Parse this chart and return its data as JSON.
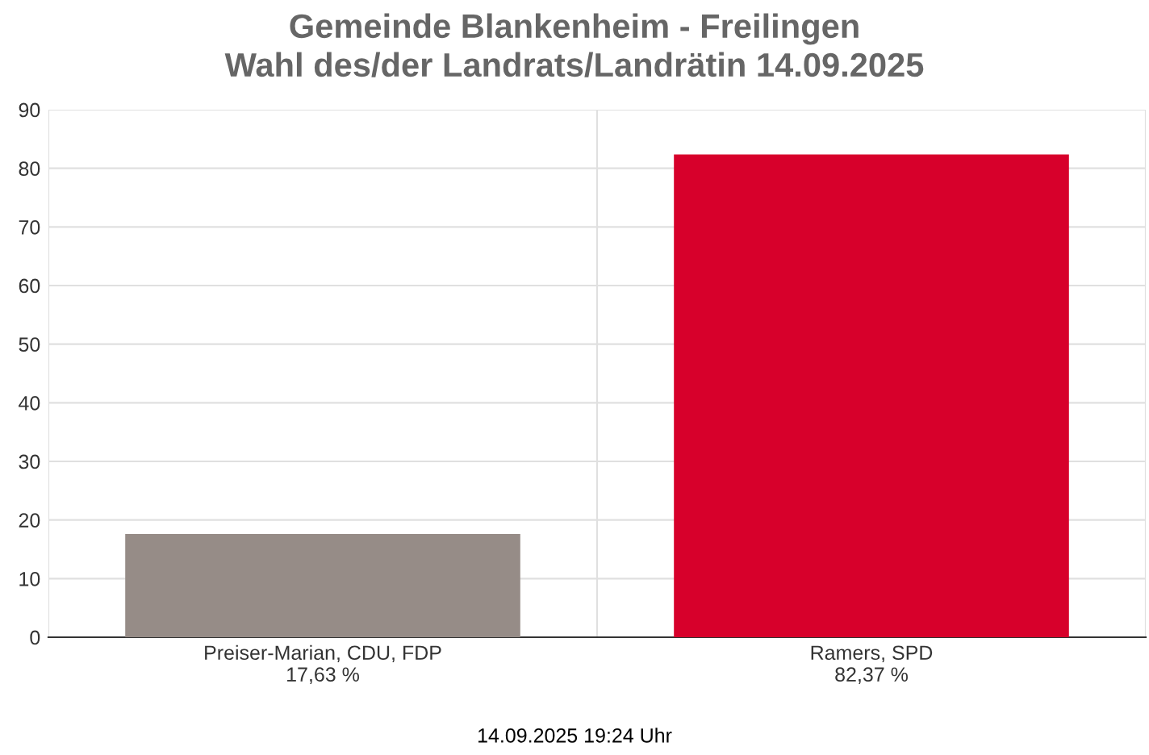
{
  "chart_data": {
    "type": "bar",
    "title": "Gemeinde Blankenheim - Freilingen\nWahl des/der Landrats/Landrätin 14.09.2025",
    "categories": [
      "Preiser-Marian, CDU, FDP\n17,63 %",
      "Ramers, SPD\n82,37 %"
    ],
    "values": [
      17.63,
      82.37
    ],
    "colors": [
      "#968c87",
      "#d7002b"
    ],
    "ylim": [
      0,
      90
    ],
    "yticks": [
      0,
      10,
      20,
      30,
      40,
      50,
      60,
      70,
      80,
      90
    ],
    "grid": true,
    "annotations": [
      "14.09.2025 19:24 Uhr"
    ]
  }
}
